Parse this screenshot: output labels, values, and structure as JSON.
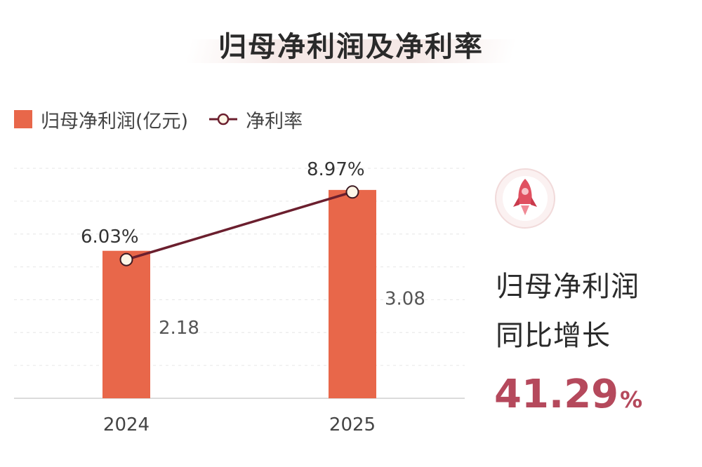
{
  "chart_data": {
    "type": "bar",
    "title": "归母净利润及净利率",
    "categories": [
      "2024",
      "2025"
    ],
    "series": [
      {
        "name": "归母净利润(亿元)",
        "type": "bar",
        "values": [
          2.18,
          3.08
        ],
        "labels": [
          "2.18",
          "3.08"
        ],
        "color": "#e8674a"
      },
      {
        "name": "净利率",
        "type": "line",
        "values": [
          6.03,
          8.97
        ],
        "labels": [
          "6.03%",
          "8.97%"
        ],
        "color": "#6b1f2e"
      }
    ],
    "bar_ylim": [
      0,
      3.4
    ],
    "line_ylim": [
      0,
      10.0
    ],
    "grid": true,
    "legend_position": "top-left"
  },
  "kpi": {
    "label_line1": "归母净利润",
    "label_line2": "同比增长",
    "value": "41.29",
    "unit": "%",
    "icon": "rocket-icon"
  },
  "colors": {
    "bar": "#e8674a",
    "line": "#6b1f2e",
    "marker_fill": "#fdf6e7",
    "accent": "#b5495c"
  }
}
